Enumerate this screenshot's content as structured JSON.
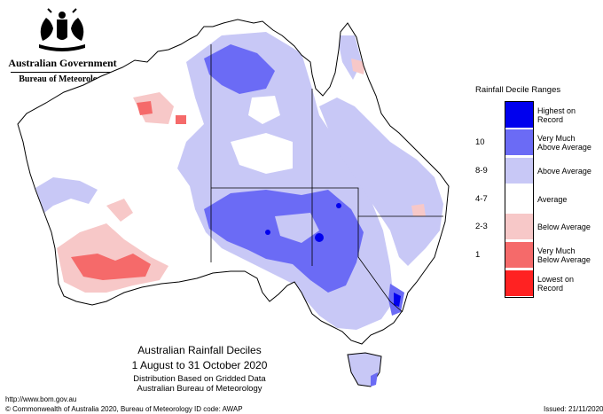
{
  "header": {
    "government": "Australian Government",
    "bureau": "Bureau of Meteorology"
  },
  "legend": {
    "title": "Rainfall Decile Ranges",
    "items": [
      {
        "decile": "",
        "label_1": "Highest on",
        "label_2": "Record",
        "color": "#0000ee",
        "name": "highest-on-record"
      },
      {
        "decile": "10",
        "label_1": "Very Much",
        "label_2": "Above Average",
        "color": "#6b6bf5",
        "name": "very-much-above-average"
      },
      {
        "decile": "8-9",
        "label_1": "Above Average",
        "label_2": "",
        "color": "#c8c8f6",
        "name": "above-average"
      },
      {
        "decile": "4-7",
        "label_1": "Average",
        "label_2": "",
        "color": "#ffffff",
        "name": "average"
      },
      {
        "decile": "2-3",
        "label_1": "Below Average",
        "label_2": "",
        "color": "#f7c8c8",
        "name": "below-average"
      },
      {
        "decile": "1",
        "label_1": "Very Much",
        "label_2": "Below Average",
        "color": "#f56a6a",
        "name": "very-much-below-average"
      },
      {
        "decile": "",
        "label_1": "Lowest on",
        "label_2": "Record",
        "color": "#ff2222",
        "name": "lowest-on-record"
      }
    ]
  },
  "caption": {
    "title": "Australian Rainfall Deciles",
    "dates": "1 August to 31 October 2020",
    "line3": "Distribution Based on Gridded Data",
    "line4": "Australian Bureau of Meteorology"
  },
  "footer": {
    "url": "http://www.bom.gov.au",
    "copyright": "© Commonwealth of Australia 2020, Bureau of Meteorology",
    "id_code": "ID code: AWAP",
    "issued": "Issued: 21/11/2020"
  }
}
